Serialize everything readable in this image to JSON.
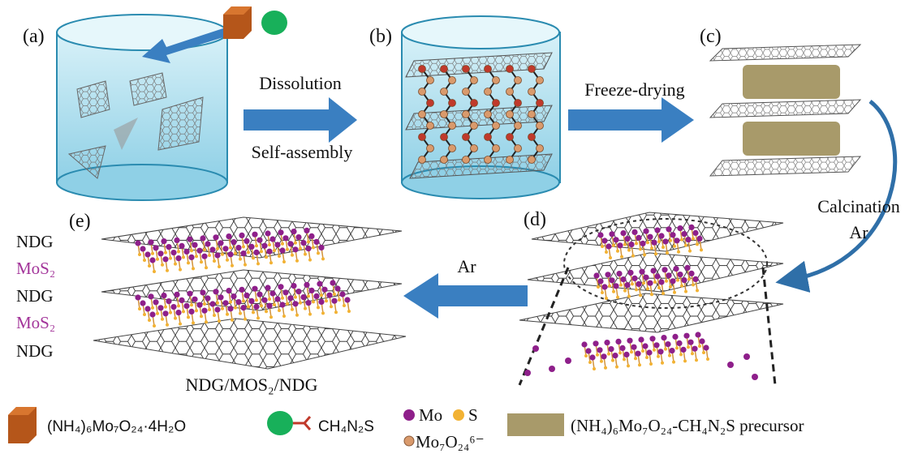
{
  "panel_labels": [
    "(a)",
    "(b)",
    "(c)",
    "(d)",
    "(e)"
  ],
  "steps": {
    "dissolution": "Dissolution",
    "self_assembly": "Self-assembly",
    "freeze_drying": "Freeze-drying",
    "calcination": "Calcination",
    "calcination_gas": "Ar",
    "ar_arrow": "Ar"
  },
  "layers": [
    "NDG",
    "MoS₂",
    "NDG",
    "MoS₂",
    "NDG"
  ],
  "composite": "NDG/MOS₂/NDG",
  "legend": {
    "ammonium_molybdate": "(NH₄)₆Mo₇O₂₄·4H₂O",
    "thiourea": "CH₄N₂S",
    "mo": "Mo",
    "s": "S",
    "molybdate_ion": "Mo₇O₂₄⁶⁻",
    "precursor": "(NH₄)₆Mo₇O₂₄-CH₄N₂S precursor"
  }
}
